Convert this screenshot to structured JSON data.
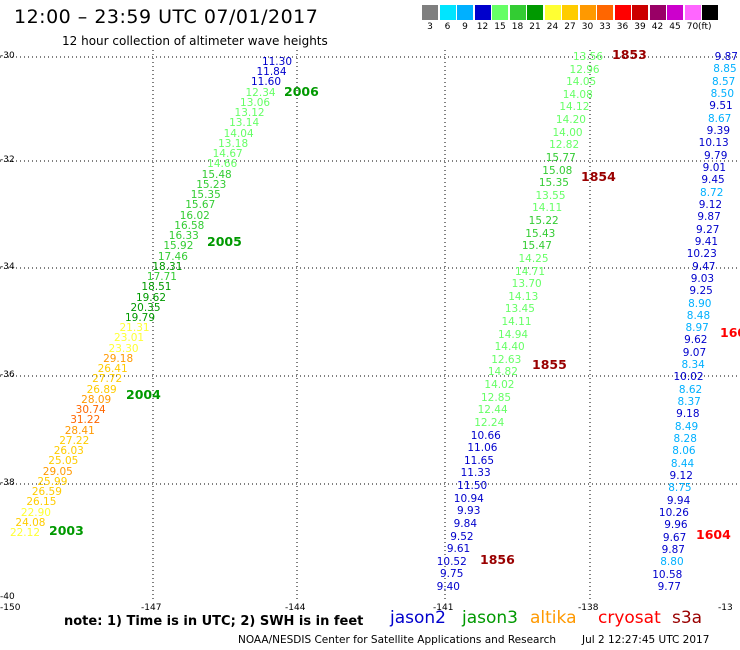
{
  "title": "12:00 – 23:59 UTC 07/01/2017",
  "subtitle": "12 hour collection of altimeter wave heights",
  "legend": {
    "unit": "(ft)",
    "bins": [
      {
        "label": "3",
        "color": "#7f7f7f"
      },
      {
        "label": "6",
        "color": "#00e5ff"
      },
      {
        "label": "9",
        "color": "#00b0ff"
      },
      {
        "label": "12",
        "color": "#0000cc"
      },
      {
        "label": "15",
        "color": "#66ff66"
      },
      {
        "label": "18",
        "color": "#33cc33"
      },
      {
        "label": "21",
        "color": "#009900"
      },
      {
        "label": "24",
        "color": "#ffff33"
      },
      {
        "label": "27",
        "color": "#ffcc00"
      },
      {
        "label": "30",
        "color": "#ff9900"
      },
      {
        "label": "33",
        "color": "#ff6600"
      },
      {
        "label": "36",
        "color": "#ff0000"
      },
      {
        "label": "39",
        "color": "#cc0000"
      },
      {
        "label": "42",
        "color": "#990066"
      },
      {
        "label": "45",
        "color": "#cc00cc"
      },
      {
        "label": "70",
        "color": "#ff66ff"
      },
      {
        "label": "",
        "color": "#000000"
      }
    ]
  },
  "axes": {
    "lat_labels": [
      "-30",
      "-32",
      "-34",
      "-36",
      "-38",
      "-40"
    ],
    "lon_labels": [
      "-150",
      "-147",
      "-144",
      "-141",
      "-138",
      "-13"
    ]
  },
  "tracks": [
    {
      "name": "track-1",
      "color_key": "jason3",
      "points": [
        [
          "11.30",
          "12"
        ],
        [
          "11.84",
          "12"
        ],
        [
          "11.60",
          "12"
        ],
        [
          "12.34",
          "15"
        ],
        [
          "13.06",
          "15"
        ],
        [
          "13.12",
          "15"
        ],
        [
          "13.14",
          "15"
        ],
        [
          "14.04",
          "15"
        ],
        [
          "13.18",
          "15"
        ],
        [
          "14.67",
          "15"
        ],
        [
          "14.66",
          "15"
        ],
        [
          "15.48",
          "18"
        ],
        [
          "15.23",
          "18"
        ],
        [
          "15.35",
          "18"
        ],
        [
          "15.67",
          "18"
        ],
        [
          "16.02",
          "18"
        ],
        [
          "16.58",
          "18"
        ],
        [
          "16.33",
          "18"
        ],
        [
          "15.92",
          "18"
        ],
        [
          "17.46",
          "18"
        ],
        [
          "18.31",
          "21"
        ],
        [
          "17.71",
          "18"
        ],
        [
          "18.51",
          "21"
        ],
        [
          "19.62",
          "21"
        ],
        [
          "20.35",
          "21"
        ],
        [
          "19.79",
          "21"
        ],
        [
          "21.31",
          "24"
        ],
        [
          "23.01",
          "24"
        ],
        [
          "23.30",
          "24"
        ],
        [
          "29.18",
          "30"
        ],
        [
          "26.41",
          "27"
        ],
        [
          "27.72",
          "27"
        ],
        [
          "26.89",
          "27"
        ],
        [
          "28.09",
          "30"
        ],
        [
          "30.74",
          "33"
        ],
        [
          "31.22",
          "33"
        ],
        [
          "28.41",
          "30"
        ],
        [
          "27.22",
          "27"
        ],
        [
          "26.03",
          "27"
        ],
        [
          "25.05",
          "27"
        ],
        [
          "29.05",
          "30"
        ],
        [
          "25.99",
          "27"
        ],
        [
          "26.59",
          "27"
        ],
        [
          "26.15",
          "27"
        ],
        [
          "22.90",
          "24"
        ],
        [
          "24.08",
          "27"
        ],
        [
          "22.12",
          "24"
        ]
      ]
    },
    {
      "name": "track-2",
      "color_key": "mixed",
      "points": [
        [
          "13.56",
          "15"
        ],
        [
          "12.96",
          "15"
        ],
        [
          "14.05",
          "15"
        ],
        [
          "14.08",
          "15"
        ],
        [
          "14.12",
          "15"
        ],
        [
          "14.20",
          "15"
        ],
        [
          "14.00",
          "15"
        ],
        [
          "12.82",
          "15"
        ],
        [
          "15.77",
          "18"
        ],
        [
          "15.08",
          "18"
        ],
        [
          "15.35",
          "18"
        ],
        [
          "13.55",
          "15"
        ],
        [
          "14.11",
          "15"
        ],
        [
          "15.22",
          "18"
        ],
        [
          "15.43",
          "18"
        ],
        [
          "15.47",
          "18"
        ],
        [
          "14.25",
          "15"
        ],
        [
          "14.71",
          "15"
        ],
        [
          "13.70",
          "15"
        ],
        [
          "14.13",
          "15"
        ],
        [
          "13.45",
          "15"
        ],
        [
          "14.11",
          "15"
        ],
        [
          "14.94",
          "15"
        ],
        [
          "14.40",
          "15"
        ],
        [
          "12.63",
          "15"
        ],
        [
          "14.82",
          "15"
        ],
        [
          "14.02",
          "15"
        ],
        [
          "12.85",
          "15"
        ],
        [
          "12.44",
          "15"
        ],
        [
          "12.24",
          "15"
        ],
        [
          "10.66",
          "12"
        ],
        [
          "11.06",
          "12"
        ],
        [
          "11.65",
          "12"
        ],
        [
          "11.33",
          "12"
        ],
        [
          "11.50",
          "12"
        ],
        [
          "10.94",
          "12"
        ],
        [
          "9.93",
          "12"
        ],
        [
          "9.84",
          "12"
        ],
        [
          "9.52",
          "12"
        ],
        [
          "9.61",
          "12"
        ],
        [
          "10.52",
          "12"
        ],
        [
          "9.75",
          "12"
        ],
        [
          "9.40",
          "12"
        ]
      ]
    },
    {
      "name": "track-3",
      "color_key": "mixed",
      "points": [
        [
          "9.87",
          "12"
        ],
        [
          "8.85",
          "9"
        ],
        [
          "8.57",
          "9"
        ],
        [
          "8.50",
          "9"
        ],
        [
          "9.51",
          "12"
        ],
        [
          "8.67",
          "9"
        ],
        [
          "9.39",
          "12"
        ],
        [
          "10.13",
          "12"
        ],
        [
          "9.79",
          "12"
        ],
        [
          "9.01",
          "12"
        ],
        [
          "9.45",
          "12"
        ],
        [
          "8.72",
          "9"
        ],
        [
          "9.12",
          "12"
        ],
        [
          "9.87",
          "12"
        ],
        [
          "9.27",
          "12"
        ],
        [
          "9.41",
          "12"
        ],
        [
          "10.23",
          "12"
        ],
        [
          "9.47",
          "12"
        ],
        [
          "9.03",
          "12"
        ],
        [
          "9.25",
          "12"
        ],
        [
          "8.90",
          "9"
        ],
        [
          "8.48",
          "9"
        ],
        [
          "8.97",
          "9"
        ],
        [
          "9.62",
          "12"
        ],
        [
          "9.07",
          "12"
        ],
        [
          "8.34",
          "9"
        ],
        [
          "10.02",
          "12"
        ],
        [
          "8.62",
          "9"
        ],
        [
          "8.37",
          "9"
        ],
        [
          "9.18",
          "12"
        ],
        [
          "8.49",
          "9"
        ],
        [
          "8.28",
          "9"
        ],
        [
          "8.06",
          "9"
        ],
        [
          "8.44",
          "9"
        ],
        [
          "9.12",
          "12"
        ],
        [
          "8.75",
          "9"
        ],
        [
          "9.94",
          "12"
        ],
        [
          "10.26",
          "12"
        ],
        [
          "9.96",
          "12"
        ],
        [
          "9.67",
          "12"
        ],
        [
          "9.87",
          "12"
        ],
        [
          "8.80",
          "9"
        ],
        [
          "10.58",
          "12"
        ],
        [
          "9.77",
          "12"
        ]
      ]
    }
  ],
  "time_labels": [
    {
      "text": "2006",
      "color": "#009900"
    },
    {
      "text": "2005",
      "color": "#009900"
    },
    {
      "text": "2004",
      "color": "#009900"
    },
    {
      "text": "2003",
      "color": "#009900"
    },
    {
      "text": "1853",
      "color": "#990000"
    },
    {
      "text": "1854",
      "color": "#990000"
    },
    {
      "text": "1855",
      "color": "#990000"
    },
    {
      "text": "1856",
      "color": "#990000"
    },
    {
      "text": "160",
      "color": "#ff0000"
    },
    {
      "text": "1604",
      "color": "#ff0000"
    }
  ],
  "footer": {
    "note": "note:  1) Time is in UTC;  2) SWH is in feet",
    "satellites": [
      {
        "name": "jason2",
        "color": "#0000cc"
      },
      {
        "name": "jason3",
        "color": "#009900"
      },
      {
        "name": "altika",
        "color": "#ff9900"
      },
      {
        "name": "cryosat",
        "color": "#ff0000"
      },
      {
        "name": "s3a",
        "color": "#990000"
      }
    ],
    "credit": "NOAA/NESDIS Center for Satellite Applications and Research",
    "timestamp": "Jul  2 12:27:45 UTC 2017"
  }
}
